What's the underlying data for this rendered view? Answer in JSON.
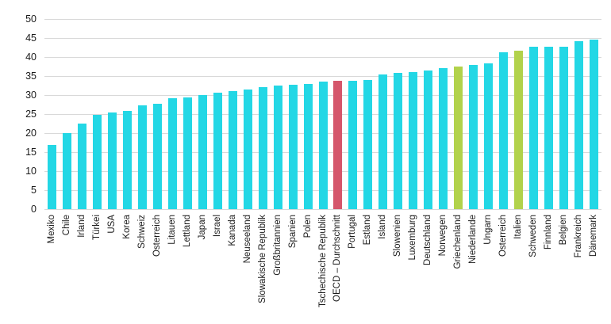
{
  "chart_data": {
    "type": "bar",
    "title": "",
    "xlabel": "",
    "ylabel": "",
    "ylim": [
      0,
      50
    ],
    "y_ticks": [
      0,
      5,
      10,
      15,
      20,
      25,
      30,
      35,
      40,
      45,
      50
    ],
    "grid": true,
    "legend": "none",
    "categories": [
      "Mexiko",
      "Chile",
      "Irland",
      "Türkei",
      "USA",
      "Korea",
      "Schweiz",
      "Österreich",
      "Litauen",
      "Lettland",
      "Japan",
      "Israel",
      "Kanada",
      "Neuseeland",
      "Slowakische Republik",
      "Großbritannien",
      "Spanien",
      "Polen",
      "Tschechische Republik",
      "OECD – Durchschnitt",
      "Portugal",
      "Estland",
      "Island",
      "Slowenien",
      "Luxemburg",
      "Deutschland",
      "Norwegen",
      "Griechenland",
      "Niederlande",
      "Ungarn",
      "Österreich",
      "Italien",
      "Schweden",
      "Finnland",
      "Belgien",
      "Frankreich",
      "Dänemark"
    ],
    "values": [
      16.8,
      19.9,
      22.5,
      24.8,
      25.4,
      25.9,
      27.3,
      27.8,
      29.2,
      29.4,
      30.1,
      30.7,
      31.1,
      31.5,
      32.0,
      32.4,
      32.8,
      32.9,
      33.5,
      33.8,
      33.7,
      33.9,
      35.4,
      35.8,
      36.1,
      36.5,
      37.0,
      37.5,
      37.9,
      38.3,
      41.3,
      41.7,
      42.8,
      42.8,
      42.8,
      44.1,
      44.6
    ],
    "palette": {
      "default": "#23d7e5",
      "highlight_red": "#d5566b",
      "highlight_green": "#b2d24b"
    },
    "highlights": {
      "19": "highlight_red",
      "27": "highlight_green",
      "31": "highlight_green"
    },
    "gridline_color": "#d9d9d9",
    "text_color": "#1a1a1a"
  }
}
